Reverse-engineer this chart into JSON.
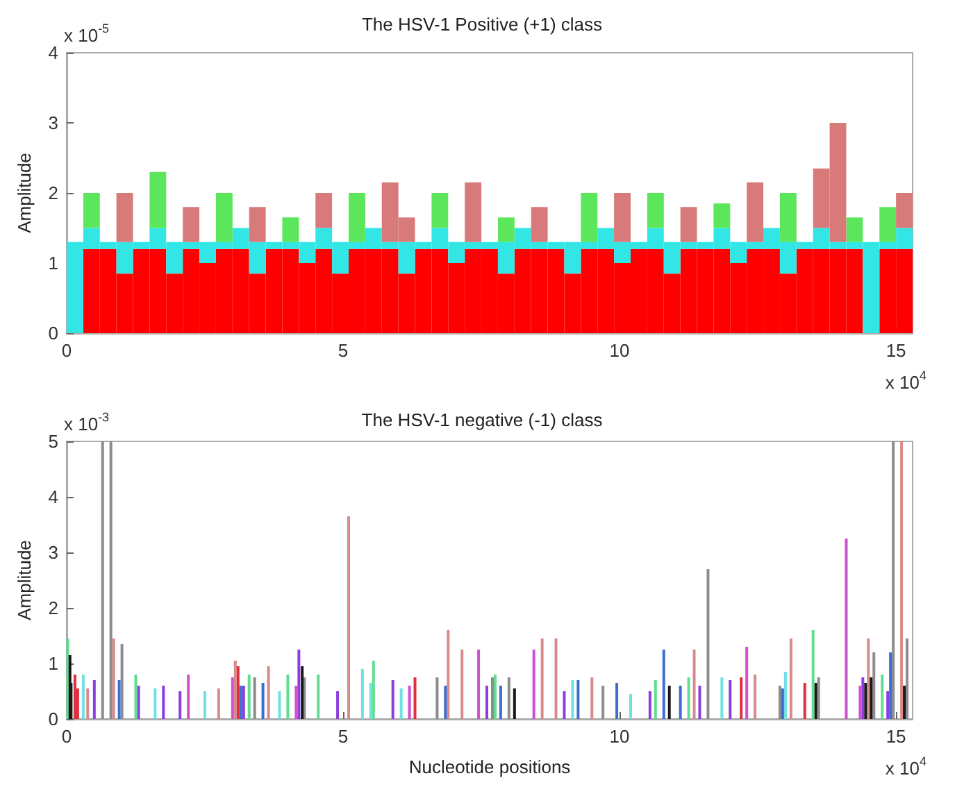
{
  "chart_data": [
    {
      "type": "bar",
      "stacked": true,
      "title": "The HSV-1 Positive (+1) class",
      "ylabel": "Amplitude",
      "annotations": [
        "x 10$^{-5}$",
        "x 10$^{4}$"
      ],
      "xlim": [
        0,
        15.3
      ],
      "xticks": [
        0,
        5,
        10,
        15
      ],
      "ylim": [
        0,
        4
      ],
      "yticks": [
        0,
        1,
        2,
        3,
        4
      ],
      "x": [
        0.15,
        0.45,
        0.75,
        1.05,
        1.35,
        1.65,
        1.95,
        2.25,
        2.55,
        2.85,
        3.15,
        3.45,
        3.75,
        4.05,
        4.35,
        4.65,
        4.95,
        5.25,
        5.55,
        5.85,
        6.15,
        6.45,
        6.75,
        7.05,
        7.35,
        7.65,
        7.95,
        8.25,
        8.55,
        8.85,
        9.15,
        9.45,
        9.75,
        10.05,
        10.35,
        10.65,
        10.95,
        11.25,
        11.55,
        11.85,
        12.15,
        12.45,
        12.75,
        13.05,
        13.35,
        13.65,
        13.95,
        14.25,
        14.55,
        14.85,
        15.15
      ],
      "series": [
        {
          "color": "#ff0000",
          "values": [
            0,
            1.2,
            1.2,
            0.85,
            1.2,
            1.2,
            0.85,
            1.2,
            1.0,
            1.2,
            1.2,
            0.85,
            1.2,
            1.2,
            1.0,
            1.2,
            0.85,
            1.2,
            1.2,
            1.2,
            0.85,
            1.2,
            1.2,
            1.0,
            1.2,
            1.2,
            0.85,
            1.2,
            1.2,
            1.2,
            0.85,
            1.2,
            1.2,
            1.0,
            1.2,
            1.2,
            0.85,
            1.2,
            1.2,
            1.2,
            1.0,
            1.2,
            1.2,
            0.85,
            1.2,
            1.2,
            1.2,
            1.2,
            0,
            1.2,
            1.2
          ]
        },
        {
          "color": "#33e6e6",
          "values": [
            1.3,
            0.3,
            0.1,
            0.45,
            0.1,
            0.3,
            0.45,
            0.1,
            0.3,
            0.1,
            0.3,
            0.45,
            0.1,
            0.1,
            0.3,
            0.3,
            0.45,
            0.1,
            0.3,
            0.1,
            0.45,
            0.1,
            0.3,
            0.3,
            0.1,
            0.1,
            0.45,
            0.3,
            0.1,
            0.1,
            0.45,
            0.1,
            0.3,
            0.3,
            0.1,
            0.3,
            0.45,
            0.1,
            0.1,
            0.3,
            0.3,
            0.1,
            0.3,
            0.45,
            0.1,
            0.3,
            0.1,
            0.1,
            1.3,
            0.1,
            0.3
          ]
        },
        {
          "color": "#5ce65c",
          "values": [
            null,
            0.5,
            null,
            null,
            null,
            0.8,
            null,
            null,
            null,
            0.7,
            null,
            null,
            null,
            0.35,
            null,
            null,
            null,
            0.7,
            null,
            null,
            null,
            null,
            0.5,
            null,
            null,
            null,
            0.35,
            null,
            null,
            null,
            null,
            0.7,
            null,
            null,
            null,
            0.5,
            null,
            null,
            null,
            0.35,
            null,
            null,
            null,
            0.7,
            null,
            null,
            null,
            0.35,
            null,
            0.5,
            null
          ]
        },
        {
          "color": "#d97a7a",
          "values": [
            null,
            null,
            null,
            0.7,
            null,
            null,
            null,
            0.5,
            null,
            null,
            null,
            0.5,
            null,
            null,
            null,
            0.5,
            null,
            null,
            null,
            0.85,
            0.35,
            null,
            null,
            null,
            0.85,
            null,
            null,
            null,
            0.5,
            null,
            null,
            null,
            null,
            0.7,
            null,
            null,
            null,
            0.5,
            null,
            null,
            null,
            0.85,
            null,
            null,
            null,
            0.85,
            1.7,
            null,
            null,
            null,
            0.5
          ]
        }
      ]
    },
    {
      "type": "bar",
      "title": "The HSV-1 negative (-1) class",
      "xlabel": "Nucleotide positions",
      "ylabel": "Amplitude",
      "annotations": [
        "x 10$^{-3}$",
        "x 10$^{4}$"
      ],
      "xlim": [
        0,
        15.3
      ],
      "xticks": [
        0,
        5,
        10,
        15
      ],
      "ylim": [
        0,
        5
      ],
      "yticks": [
        0,
        1,
        2,
        3,
        4,
        5
      ],
      "series": [
        {
          "color": "#8c8c8c",
          "x": [
            0.65,
            0.8,
            1.0,
            3.4,
            4.3,
            6.7,
            7.7,
            8.0,
            9.7,
            11.6,
            12.9,
            13.6,
            14.6,
            14.95,
            15.2
          ],
          "values": [
            5,
            5,
            1.35,
            0.75,
            0.75,
            0.75,
            0.75,
            0.75,
            0.6,
            2.7,
            0.6,
            0.75,
            1.2,
            5,
            1.45
          ]
        },
        {
          "color": "#d98a8a",
          "x": [
            0.38,
            0.85,
            2.75,
            3.05,
            3.65,
            5.1,
            6.9,
            7.15,
            8.6,
            8.85,
            9.5,
            11.35,
            12.45,
            13.1,
            14.5,
            15.1
          ],
          "values": [
            0.55,
            1.45,
            0.55,
            1.05,
            0.95,
            3.65,
            1.6,
            1.25,
            1.45,
            1.45,
            0.75,
            1.25,
            0.8,
            1.45,
            1.45,
            5
          ]
        },
        {
          "color": "#d050d0",
          "x": [
            2.2,
            3.0,
            4.15,
            6.2,
            7.45,
            8.45,
            12.3,
            14.1,
            14.35
          ],
          "values": [
            0.8,
            0.75,
            0.6,
            0.6,
            1.25,
            1.25,
            1.3,
            3.25,
            0.6
          ]
        },
        {
          "color": "#8a3ee0",
          "x": [
            0.5,
            1.3,
            1.75,
            2.05,
            3.2,
            4.2,
            4.9,
            5.9,
            7.6,
            9.0,
            10.55,
            11.45,
            12.0,
            14.4,
            14.85
          ],
          "values": [
            0.7,
            0.6,
            0.6,
            0.5,
            0.6,
            1.25,
            0.5,
            0.7,
            0.6,
            0.5,
            0.5,
            0.6,
            0.7,
            0.75,
            0.5
          ]
        },
        {
          "color": "#3a6fd0",
          "x": [
            0.95,
            3.15,
            3.55,
            6.85,
            7.85,
            9.25,
            9.95,
            10.8,
            11.1,
            12.95,
            14.9
          ],
          "values": [
            0.7,
            0.6,
            0.65,
            0.6,
            0.6,
            0.7,
            0.65,
            1.25,
            0.6,
            0.55,
            1.2
          ]
        },
        {
          "color": "#70e0e0",
          "x": [
            0.3,
            1.6,
            2.5,
            3.85,
            5.35,
            5.5,
            6.05,
            9.15,
            10.2,
            11.85,
            13.0
          ],
          "values": [
            0.8,
            0.55,
            0.5,
            0.5,
            0.9,
            0.65,
            0.55,
            0.7,
            0.45,
            0.75,
            0.85
          ]
        },
        {
          "color": "#60dd90",
          "x": [
            0.02,
            1.25,
            3.3,
            4.0,
            4.55,
            5.55,
            7.75,
            10.65,
            11.25,
            13.5,
            14.75
          ],
          "values": [
            1.45,
            0.8,
            0.8,
            0.8,
            0.8,
            1.05,
            0.8,
            0.7,
            0.75,
            1.6,
            0.8
          ]
        },
        {
          "color": "#1a1a1a",
          "x": [
            0.06,
            0.08,
            4.26,
            8.1,
            10.9,
            13.55,
            14.45,
            14.55,
            15.15
          ],
          "values": [
            1.15,
            0.65,
            0.95,
            0.55,
            0.6,
            0.65,
            0.65,
            0.75,
            0.6
          ]
        },
        {
          "color": "#e03040",
          "x": [
            0.15,
            0.2,
            3.1,
            6.3,
            12.2,
            13.35
          ],
          "values": [
            0.8,
            0.55,
            0.95,
            0.75,
            0.75,
            0.65
          ]
        }
      ]
    }
  ]
}
